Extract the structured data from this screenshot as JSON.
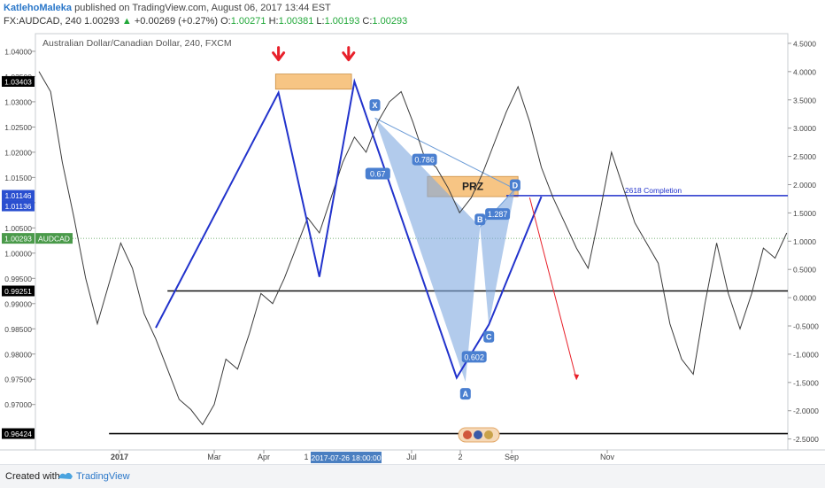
{
  "header": {
    "author": "KatlehoMaleka",
    "published": "published on TradingView.com, August 06, 2017 13:44 EST",
    "symbol": "FX:AUDCAD, 240",
    "price": "1.00293",
    "change": "+0.00269 (+0.27%)",
    "o_label": "O:",
    "o_value": "1.00271",
    "h_label": "H:",
    "h_value": "1.00381",
    "l_label": "L:",
    "l_value": "1.00193",
    "c_label": "C:",
    "c_value": "1.00293"
  },
  "footer": {
    "created": "Created with",
    "brand": "TradingView"
  },
  "colors": {
    "pattern": "#2233cc",
    "fill": "#7fa8e0",
    "zone": "#f7c27e",
    "red": "#e8202a",
    "axis_box": "#000000",
    "price_box": "#4a9a4a"
  },
  "chart_data": {
    "type": "line",
    "title": "Australian Dollar/Canadian Dollar, 240, FXCM",
    "price_axis": {
      "range": [
        0.961,
        1.0435
      ],
      "ticks": [
        "1.04000",
        "1.03500",
        "1.03000",
        "1.02500",
        "1.02000",
        "1.01500",
        "1.01000",
        "1.00500",
        "1.00000",
        "0.99500",
        "0.99000",
        "0.98500",
        "0.98000",
        "0.97500",
        "0.97000"
      ],
      "tick_values": [
        1.04,
        1.035,
        1.03,
        1.025,
        1.02,
        1.015,
        1.01,
        1.005,
        1.0,
        0.995,
        0.99,
        0.985,
        0.98,
        0.975,
        0.97
      ],
      "labels": [
        {
          "text": "1.03403",
          "value": 1.03403,
          "style": "dark"
        },
        {
          "text": "1.01146",
          "value": 1.01146,
          "style": "blue"
        },
        {
          "text": "1.01136",
          "value": 1.01136,
          "style": "blue"
        },
        {
          "text": "1.00293",
          "value": 1.00293,
          "style": "green"
        },
        {
          "text": "AUDCAD",
          "value": 1.00293,
          "style": "green"
        },
        {
          "text": "0.99251",
          "value": 0.99251,
          "style": "dark"
        },
        {
          "text": "0.96424",
          "value": 0.96424,
          "style": "dark"
        }
      ]
    },
    "right_axis": {
      "range": [
        -2.6935,
        4.6715
      ],
      "ticks": [
        "4.5000",
        "4.0000",
        "3.5000",
        "3.0000",
        "2.5000",
        "2.0000",
        "1.5000",
        "1.0000",
        "0.5000",
        "0.0000",
        "-0.5000",
        "-1.0000",
        "-1.5000",
        "-2.0000",
        "-2.5000"
      ],
      "tick_values": [
        4.5,
        4.0,
        3.5,
        3.0,
        2.5,
        2.0,
        1.5,
        1.0,
        0.5,
        0.0,
        -0.5,
        -1.0,
        -1.5,
        -2.0,
        -2.5
      ]
    },
    "time_axis": {
      "labels": [
        "2017",
        "Mar",
        "Apr",
        "Jul",
        "2",
        "Sep",
        "Nov"
      ],
      "highlight": "2017-07-26 18:00:00",
      "stub": "1"
    },
    "price_series": [
      [
        0,
        1.036
      ],
      [
        4,
        1.032
      ],
      [
        8,
        1.018
      ],
      [
        12,
        1.007
      ],
      [
        16,
        0.995
      ],
      [
        20,
        0.986
      ],
      [
        24,
        0.994
      ],
      [
        28,
        1.002
      ],
      [
        32,
        0.997
      ],
      [
        36,
        0.988
      ],
      [
        40,
        0.983
      ],
      [
        44,
        0.977
      ],
      [
        48,
        0.971
      ],
      [
        52,
        0.969
      ],
      [
        56,
        0.966
      ],
      [
        60,
        0.97
      ],
      [
        64,
        0.979
      ],
      [
        68,
        0.977
      ],
      [
        72,
        0.984
      ],
      [
        76,
        0.992
      ],
      [
        80,
        0.99
      ],
      [
        84,
        0.995
      ],
      [
        88,
        1.001
      ],
      [
        92,
        1.007
      ],
      [
        96,
        1.004
      ],
      [
        100,
        1.011
      ],
      [
        104,
        1.018
      ],
      [
        108,
        1.023
      ],
      [
        112,
        1.02
      ],
      [
        116,
        1.026
      ],
      [
        120,
        1.03
      ],
      [
        124,
        1.032
      ],
      [
        128,
        1.026
      ],
      [
        132,
        1.019
      ],
      [
        136,
        1.017
      ],
      [
        140,
        1.013
      ],
      [
        144,
        1.008
      ],
      [
        148,
        1.011
      ],
      [
        152,
        1.016
      ],
      [
        156,
        1.022
      ],
      [
        160,
        1.028
      ],
      [
        164,
        1.033
      ],
      [
        168,
        1.026
      ],
      [
        172,
        1.017
      ],
      [
        176,
        1.011
      ],
      [
        180,
        1.006
      ],
      [
        184,
        1.001
      ],
      [
        188,
        0.997
      ],
      [
        192,
        1.008
      ],
      [
        196,
        1.02
      ],
      [
        200,
        1.013
      ],
      [
        204,
        1.006
      ],
      [
        208,
        1.002
      ],
      [
        212,
        0.998
      ],
      [
        216,
        0.986
      ],
      [
        220,
        0.979
      ],
      [
        224,
        0.976
      ],
      [
        228,
        0.99
      ],
      [
        232,
        1.002
      ],
      [
        236,
        0.992
      ],
      [
        240,
        0.985
      ],
      [
        244,
        0.992
      ],
      [
        248,
        1.001
      ],
      [
        252,
        0.999
      ],
      [
        256,
        1.004
      ]
    ],
    "lines": [
      {
        "name": "support",
        "value": 0.99251
      },
      {
        "name": "low",
        "value": 0.96424
      },
      {
        "name": "completion",
        "value": 1.0114,
        "label": "2618 Completion"
      },
      {
        "name": "last",
        "value": 1.00293
      }
    ],
    "zones": [
      {
        "name": "double-top",
        "t1": 81,
        "t2": 107,
        "top": 1.0355,
        "bottom": 1.0325
      },
      {
        "name": "prz",
        "label": "PRZ",
        "t1": 133,
        "t2": 164,
        "top": 1.0152,
        "bottom": 1.0112
      }
    ],
    "pattern": {
      "points": [
        {
          "name": "X",
          "t": 115,
          "p": 1.0268
        },
        {
          "name": "A",
          "t": 146,
          "p": 0.9745
        },
        {
          "name": "B",
          "t": 151,
          "p": 1.0052
        },
        {
          "name": "C",
          "t": 154,
          "p": 0.9858
        },
        {
          "name": "D",
          "t": 163,
          "p": 1.0127
        }
      ],
      "ratios": [
        {
          "text": "0.786",
          "t": 132,
          "p": 1.0183
        },
        {
          "text": "0.67",
          "t": 116,
          "p": 1.0155
        },
        {
          "text": "1.287",
          "t": 157,
          "p": 1.0075
        },
        {
          "text": "0.602",
          "t": 149,
          "p": 0.9792
        }
      ]
    },
    "trendlines": [
      [
        [
          40,
          0.9852
        ],
        [
          82,
          1.0318
        ],
        [
          96,
          0.9953
        ],
        [
          108,
          1.034
        ],
        [
          143,
          0.9753
        ],
        [
          154,
          0.9858
        ],
        [
          172,
          1.0112
        ]
      ]
    ],
    "projection": [
      [
        168,
        1.011
      ],
      [
        184,
        0.975
      ]
    ],
    "arrows": [
      {
        "t": 82,
        "p": 1.039
      },
      {
        "t": 106,
        "p": 1.039
      }
    ]
  }
}
